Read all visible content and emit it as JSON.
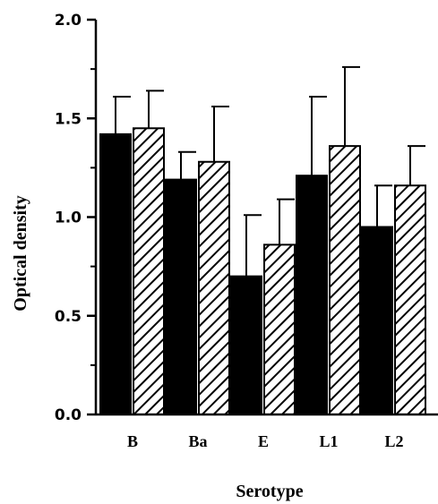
{
  "chart_data": {
    "type": "bar",
    "title": "",
    "xlabel": "Serotype",
    "ylabel": "Optical  density",
    "categories": [
      "B",
      "Ba",
      "E",
      "L1",
      "L2"
    ],
    "ylim": [
      0,
      2.0
    ],
    "yticks": [
      "0.0",
      "0.5",
      "1.0",
      "1.5",
      "2.0"
    ],
    "grid": false,
    "legend": "none",
    "series": [
      {
        "style": "solid-black",
        "values": [
          1.42,
          1.19,
          0.7,
          1.21,
          0.95
        ],
        "errors": [
          0.19,
          0.14,
          0.31,
          0.4,
          0.21
        ]
      },
      {
        "style": "diagonal-hatch",
        "values": [
          1.45,
          1.28,
          0.86,
          1.36,
          1.16
        ],
        "errors": [
          0.19,
          0.28,
          0.23,
          0.4,
          0.2
        ]
      }
    ]
  }
}
